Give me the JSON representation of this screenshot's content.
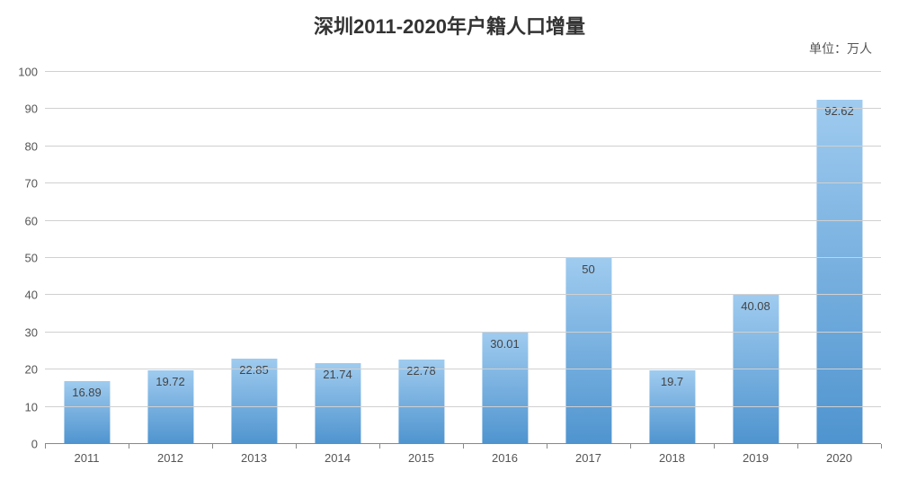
{
  "chart": {
    "type": "bar",
    "title": "深圳2011-2020年户籍人口增量",
    "title_fontsize": 22,
    "unit_label": "单位：万人",
    "unit_fontsize": 14,
    "categories": [
      "2011",
      "2012",
      "2013",
      "2014",
      "2015",
      "2016",
      "2017",
      "2018",
      "2019",
      "2020"
    ],
    "values": [
      16.89,
      19.72,
      22.85,
      21.74,
      22.78,
      30.01,
      50,
      19.7,
      40.08,
      92.62
    ],
    "value_labels": [
      "16.89",
      "19.72",
      "22.85",
      "21.74",
      "22.78",
      "30.01",
      "50",
      "19.7",
      "40.08",
      "92.62"
    ],
    "ylim": [
      0,
      100
    ],
    "ytick_step": 10,
    "yticks": [
      0,
      10,
      20,
      30,
      40,
      50,
      60,
      70,
      80,
      90,
      100
    ],
    "bar_width_ratio": 0.55,
    "bar_gradient_top": "#9fcbef",
    "bar_gradient_bottom": "#4f94cf",
    "grid_color": "#d0d0d0",
    "axis_color": "#888888",
    "background_color": "#ffffff",
    "title_color": "#333333",
    "label_color": "#555555",
    "value_label_color": "#444444",
    "tick_fontsize": 13,
    "value_label_fontsize": 13,
    "value_label_inside_threshold": 15
  }
}
